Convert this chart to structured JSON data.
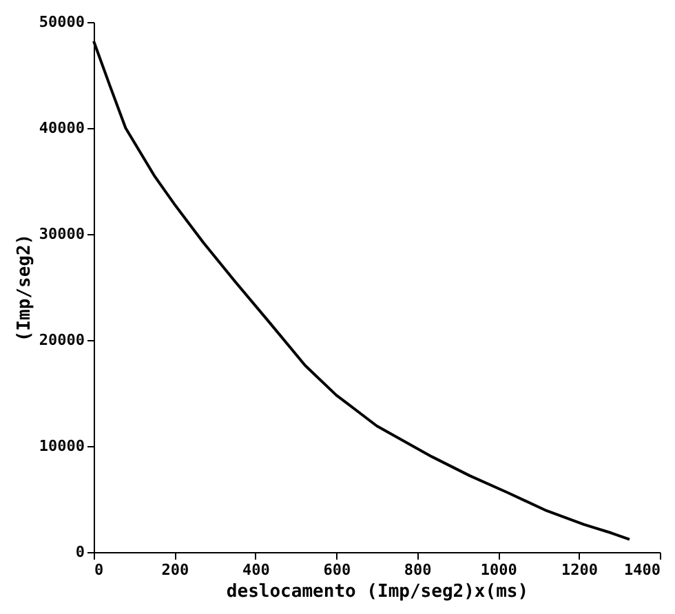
{
  "chart_data": {
    "type": "line",
    "xlabel": "deslocamento (Imp/seg2)x(ms)",
    "ylabel": "(Imp/seg2)",
    "x": [
      0,
      40,
      79,
      150,
      200,
      271,
      350,
      436,
      523,
      600,
      700,
      836,
      930,
      1024,
      1120,
      1212,
      1280,
      1325
    ],
    "series": [
      {
        "color": "#000000",
        "values": [
          48200,
          44000,
          40000,
          35500,
          32800,
          29200,
          25500,
          21600,
          17600,
          14800,
          11900,
          9000,
          7200,
          5600,
          3900,
          2600,
          1800,
          1200
        ]
      }
    ],
    "xlim": [
      0,
      1400
    ],
    "xticks": [
      0,
      200,
      400,
      600,
      800,
      1000,
      1200,
      1400
    ],
    "ylim": [
      0,
      50000
    ],
    "yticks": [
      0,
      10000,
      20000,
      30000,
      40000,
      50000
    ],
    "grid": false,
    "marker": "none",
    "line_style": "solid"
  }
}
